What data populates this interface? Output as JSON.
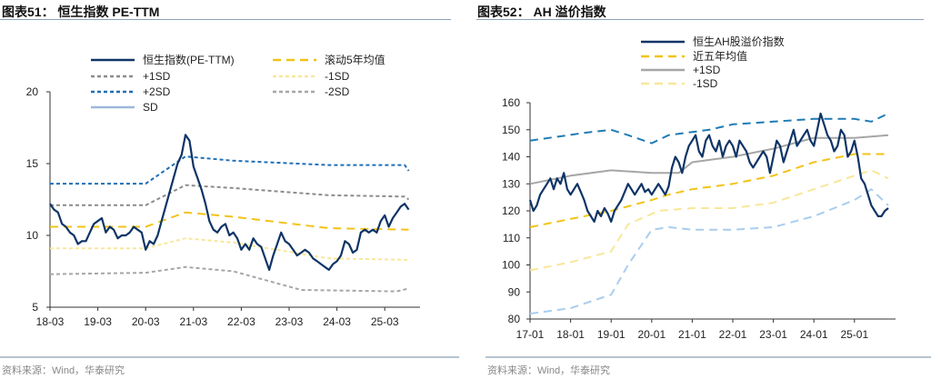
{
  "footer_source": "资料来源：Wind，华泰研究",
  "chart_data": [
    {
      "type": "line",
      "title": "图表51：  恒生指数 PE-TTM",
      "ylim": [
        5,
        20
      ],
      "yticks": [
        5,
        10,
        15,
        20
      ],
      "xlim": [
        "2018-03",
        "2025-09"
      ],
      "xticks": [
        "18-03",
        "19-03",
        "20-03",
        "21-03",
        "22-03",
        "23-03",
        "24-03",
        "25-03"
      ],
      "grid": false,
      "legend_placement": "top",
      "series": [
        {
          "name": "恒生指数(PE-TTM)",
          "color": "#0f3466",
          "style": "solid",
          "start": "2018-03",
          "freq": "monthly",
          "values": [
            12.2,
            11.8,
            11.6,
            10.8,
            10.6,
            10.2,
            10.0,
            9.4,
            9.6,
            9.6,
            10.2,
            10.8,
            11.0,
            11.2,
            10.2,
            10.6,
            10.4,
            9.8,
            10.0,
            10.0,
            10.2,
            10.6,
            10.4,
            10.2,
            9.0,
            9.6,
            9.4,
            10.0,
            11.0,
            12.0,
            13.0,
            14.0,
            15.0,
            15.6,
            17.0,
            16.6,
            14.8,
            14.0,
            13.2,
            12.2,
            11.0,
            10.4,
            10.2,
            10.6,
            10.8,
            10.0,
            10.2,
            9.8,
            9.0,
            9.4,
            9.0,
            9.8,
            9.4,
            9.2,
            8.4,
            7.6,
            8.6,
            9.4,
            10.2,
            9.6,
            9.4,
            9.0,
            8.6,
            8.8,
            9.0,
            8.8,
            8.4,
            8.2,
            8.0,
            7.8,
            7.6,
            8.0,
            8.2,
            8.6,
            9.6,
            9.4,
            8.8,
            9.0,
            10.2,
            10.4,
            10.2,
            10.4,
            10.2,
            11.0,
            11.4,
            10.6,
            11.2,
            11.6,
            12.0,
            12.2,
            11.8
          ]
        },
        {
          "name": "滚动5年均值",
          "color": "#f2c318",
          "style": "longdash",
          "points": [
            [
              "2018-03",
              10.6
            ],
            [
              "2020-03",
              10.6
            ],
            [
              "2021-01",
              11.6
            ],
            [
              "2022-01",
              11.3
            ],
            [
              "2024-01",
              10.5
            ],
            [
              "2025-09",
              10.4
            ]
          ]
        },
        {
          "name": "+1SD",
          "color": "#8c8c8c",
          "style": "dash",
          "points": [
            [
              "2018-03",
              12.1
            ],
            [
              "2020-03",
              12.1
            ],
            [
              "2021-01",
              13.5
            ],
            [
              "2022-01",
              13.3
            ],
            [
              "2024-01",
              12.8
            ],
            [
              "2025-08",
              12.7
            ],
            [
              "2025-09",
              12.5
            ]
          ]
        },
        {
          "name": "-1SD",
          "color": "#f8e79a",
          "style": "dash",
          "points": [
            [
              "2018-03",
              9.1
            ],
            [
              "2020-03",
              9.1
            ],
            [
              "2021-01",
              9.8
            ],
            [
              "2022-01",
              9.5
            ],
            [
              "2024-01",
              8.4
            ],
            [
              "2025-09",
              8.3
            ]
          ]
        },
        {
          "name": "+2SD",
          "color": "#1f6fb5",
          "style": "dash",
          "points": [
            [
              "2018-03",
              13.6
            ],
            [
              "2020-03",
              13.6
            ],
            [
              "2021-01",
              15.5
            ],
            [
              "2022-01",
              15.2
            ],
            [
              "2024-01",
              14.9
            ],
            [
              "2025-08",
              14.9
            ],
            [
              "2025-09",
              14.5
            ]
          ]
        },
        {
          "name": "-2SD",
          "color": "#a6a6a6",
          "style": "dash",
          "points": [
            [
              "2018-03",
              7.3
            ],
            [
              "2020-03",
              7.4
            ],
            [
              "2021-01",
              7.8
            ],
            [
              "2022-01",
              7.5
            ],
            [
              "2023-06",
              6.2
            ],
            [
              "2025-06",
              6.1
            ],
            [
              "2025-09",
              6.3
            ]
          ]
        },
        {
          "name": "SD",
          "color": "#9db8dc",
          "style": "solid",
          "points": []
        }
      ]
    },
    {
      "type": "line",
      "title": "图表52：  AH 溢价指数",
      "ylim": [
        80,
        160
      ],
      "yticks": [
        80,
        90,
        100,
        110,
        120,
        130,
        140,
        150,
        160
      ],
      "xlim": [
        "2017-01",
        "2025-11"
      ],
      "xticks": [
        "17-01",
        "18-01",
        "19-01",
        "20-01",
        "21-01",
        "22-01",
        "23-01",
        "24-01",
        "25-01"
      ],
      "grid": false,
      "legend_placement": "top",
      "series": [
        {
          "name": "恒生AH股溢价指数",
          "color": "#0f3466",
          "style": "solid",
          "start": "2017-01",
          "freq": "monthly",
          "values": [
            124,
            120,
            122,
            126,
            128,
            130,
            132,
            128,
            132,
            130,
            134,
            128,
            126,
            128,
            130,
            127,
            124,
            120,
            118,
            116,
            120,
            118,
            121,
            119,
            116,
            120,
            122,
            124,
            127,
            130,
            128,
            126,
            128,
            130,
            127,
            128,
            126,
            128,
            130,
            128,
            126,
            129,
            136,
            140,
            138,
            134,
            140,
            144,
            146,
            148,
            142,
            140,
            146,
            148,
            144,
            142,
            146,
            140,
            144,
            146,
            144,
            140,
            146,
            144,
            142,
            138,
            136,
            138,
            140,
            142,
            140,
            134,
            140,
            146,
            144,
            138,
            142,
            146,
            150,
            144,
            146,
            148,
            150,
            146,
            144,
            150,
            156,
            152,
            148,
            146,
            142,
            144,
            150,
            148,
            140,
            142,
            146,
            140,
            132,
            130,
            126,
            122,
            120,
            118,
            118,
            120,
            121
          ]
        },
        {
          "name": "近五年均值",
          "color": "#f2c318",
          "style": "longdash",
          "points": [
            [
              "2017-01",
              114
            ],
            [
              "2018-01",
              117
            ],
            [
              "2019-01",
              120
            ],
            [
              "2020-01",
              124
            ],
            [
              "2020-06",
              126
            ],
            [
              "2021-01",
              128
            ],
            [
              "2022-01",
              130
            ],
            [
              "2023-01",
              133
            ],
            [
              "2024-01",
              138
            ],
            [
              "2025-01",
              141
            ],
            [
              "2025-11",
              141
            ]
          ]
        },
        {
          "name": "+1SD",
          "color": "#a6a6a6",
          "style": "solid",
          "points": [
            [
              "2017-01",
              130
            ],
            [
              "2018-01",
              133
            ],
            [
              "2019-01",
              135
            ],
            [
              "2020-01",
              134
            ],
            [
              "2020-09",
              134
            ],
            [
              "2021-01",
              138
            ],
            [
              "2022-01",
              140
            ],
            [
              "2023-01",
              143
            ],
            [
              "2024-01",
              147
            ],
            [
              "2025-01",
              147
            ],
            [
              "2025-11",
              148
            ]
          ]
        },
        {
          "name": "-1SD",
          "color": "#f8e79a",
          "style": "longdash",
          "points": [
            [
              "2017-01",
              98
            ],
            [
              "2018-01",
              101
            ],
            [
              "2019-01",
              105
            ],
            [
              "2019-06",
              115
            ],
            [
              "2020-03",
              120
            ],
            [
              "2021-01",
              121
            ],
            [
              "2022-01",
              121
            ],
            [
              "2023-01",
              123
            ],
            [
              "2024-01",
              128
            ],
            [
              "2025-01",
              133
            ],
            [
              "2025-06",
              135
            ],
            [
              "2025-11",
              132
            ]
          ]
        },
        {
          "color": "#1f7bb5",
          "style": "longdash",
          "points": [
            [
              "2017-01",
              146
            ],
            [
              "2018-06",
              149
            ],
            [
              "2019-01",
              150
            ],
            [
              "2019-06",
              148
            ],
            [
              "2020-01",
              145
            ],
            [
              "2020-06",
              148
            ],
            [
              "2021-06",
              150
            ],
            [
              "2022-01",
              152
            ],
            [
              "2023-01",
              153
            ],
            [
              "2024-01",
              154
            ],
            [
              "2025-01",
              154
            ],
            [
              "2025-06",
              153
            ],
            [
              "2025-11",
              156
            ]
          ]
        },
        {
          "color": "#a9cdef",
          "style": "longdash",
          "points": [
            [
              "2017-01",
              82
            ],
            [
              "2018-01",
              84
            ],
            [
              "2019-01",
              89
            ],
            [
              "2019-06",
              100
            ],
            [
              "2020-01",
              113
            ],
            [
              "2020-06",
              114
            ],
            [
              "2021-01",
              113
            ],
            [
              "2022-01",
              113
            ],
            [
              "2023-01",
              114
            ],
            [
              "2024-01",
              118
            ],
            [
              "2025-01",
              124
            ],
            [
              "2025-06",
              128
            ],
            [
              "2025-11",
              122
            ]
          ]
        }
      ]
    }
  ]
}
